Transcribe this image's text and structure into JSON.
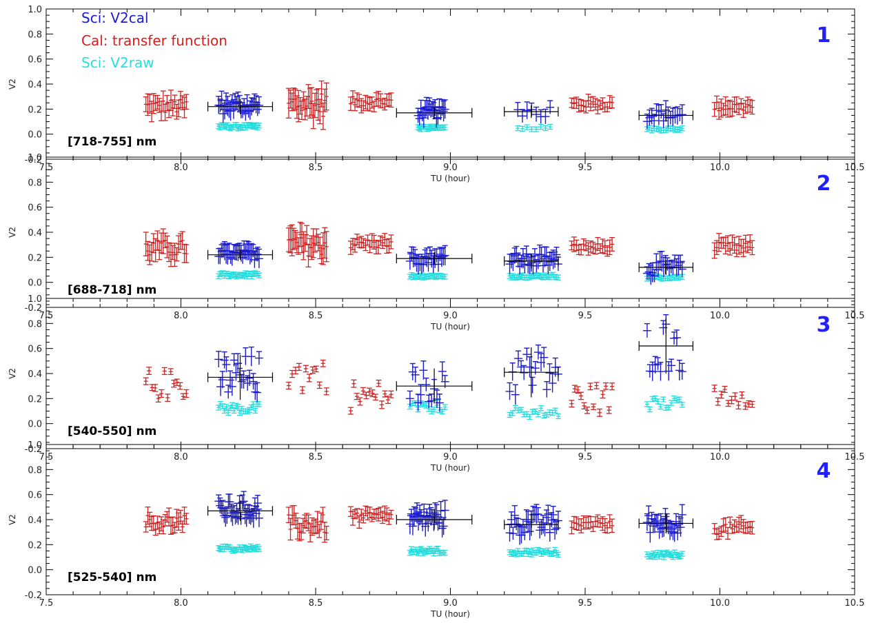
{
  "chart_data": {
    "type": "scatter",
    "xlabel": "TU (hour)",
    "ylabel": "V2",
    "xlim": [
      7.5,
      10.5
    ],
    "ylim": [
      -0.2,
      1.0
    ],
    "xticks": [
      "7.5",
      "8.0",
      "8.5",
      "9.0",
      "9.5",
      "10.0",
      "10.5"
    ],
    "yticks": [
      "-0.2",
      "0.0",
      "0.2",
      "0.4",
      "0.6",
      "0.8",
      "1.0"
    ],
    "legend": [
      {
        "label": "Sci: V2cal",
        "color": "#1a1acc"
      },
      {
        "label": "Cal: transfer function",
        "color": "#dd1a1a"
      },
      {
        "label": "Sci: V2raw",
        "color": "#22e0e0"
      }
    ],
    "colors": {
      "sci_cal": "#1a1acc",
      "cal": "#cc2222",
      "sci_raw": "#22dddd",
      "mean": "#000000",
      "panel_number": "#1f1fff"
    },
    "panels": [
      {
        "number": "1",
        "band": "[718-755] nm",
        "cal_clusters": [
          {
            "x": [
              7.87,
              8.02
            ],
            "y": 0.22,
            "spread": 0.06,
            "err": 0.05,
            "n": 22
          },
          {
            "x": [
              8.4,
              8.54
            ],
            "y": 0.24,
            "spread": 0.1,
            "err": 0.08,
            "n": 24
          },
          {
            "x": [
              8.63,
              8.78
            ],
            "y": 0.26,
            "spread": 0.04,
            "err": 0.03,
            "n": 20
          },
          {
            "x": [
              9.45,
              9.6
            ],
            "y": 0.24,
            "spread": 0.03,
            "err": 0.03,
            "n": 18
          },
          {
            "x": [
              9.98,
              10.12
            ],
            "y": 0.22,
            "spread": 0.04,
            "err": 0.04,
            "n": 18
          }
        ],
        "sci_clusters": [
          {
            "x": [
              8.14,
              8.29
            ],
            "cal": 0.22,
            "cal_spread": 0.06,
            "raw": 0.06,
            "raw_spread": 0.015,
            "n": 28,
            "mean": 0.22,
            "mean_x": [
              8.1,
              8.34
            ]
          },
          {
            "x": [
              8.88,
              8.98
            ],
            "cal": 0.17,
            "cal_spread": 0.05,
            "raw": 0.05,
            "raw_spread": 0.012,
            "n": 20,
            "mean": 0.17,
            "mean_x": [
              8.8,
              9.08
            ]
          },
          {
            "x": [
              9.25,
              9.37
            ],
            "cal": 0.18,
            "cal_spread": 0.05,
            "raw": 0.05,
            "raw_spread": 0.012,
            "n": 8,
            "mean": 0.18,
            "mean_x": [
              9.2,
              9.4
            ]
          },
          {
            "x": [
              9.73,
              9.86
            ],
            "cal": 0.15,
            "cal_spread": 0.05,
            "raw": 0.04,
            "raw_spread": 0.012,
            "n": 16,
            "mean": 0.15,
            "mean_x": [
              9.7,
              9.9
            ]
          }
        ]
      },
      {
        "number": "2",
        "band": "[688-718] nm",
        "cal_clusters": [
          {
            "x": [
              7.87,
              8.02
            ],
            "y": 0.27,
            "spread": 0.07,
            "err": 0.06,
            "n": 22
          },
          {
            "x": [
              8.4,
              8.54
            ],
            "y": 0.3,
            "spread": 0.09,
            "err": 0.08,
            "n": 24
          },
          {
            "x": [
              8.63,
              8.78
            ],
            "y": 0.31,
            "spread": 0.04,
            "err": 0.03,
            "n": 20
          },
          {
            "x": [
              9.45,
              9.6
            ],
            "y": 0.28,
            "spread": 0.03,
            "err": 0.03,
            "n": 18
          },
          {
            "x": [
              9.98,
              10.12
            ],
            "y": 0.28,
            "spread": 0.04,
            "err": 0.04,
            "n": 18
          }
        ],
        "sci_clusters": [
          {
            "x": [
              8.14,
              8.29
            ],
            "cal": 0.22,
            "cal_spread": 0.04,
            "raw": 0.06,
            "raw_spread": 0.015,
            "n": 28,
            "mean": 0.22,
            "mean_x": [
              8.1,
              8.34
            ]
          },
          {
            "x": [
              8.85,
              8.98
            ],
            "cal": 0.19,
            "cal_spread": 0.05,
            "raw": 0.05,
            "raw_spread": 0.012,
            "n": 22,
            "mean": 0.19,
            "mean_x": [
              8.8,
              9.08
            ]
          },
          {
            "x": [
              9.22,
              9.4
            ],
            "cal": 0.17,
            "cal_spread": 0.06,
            "raw": 0.05,
            "raw_spread": 0.012,
            "n": 30,
            "mean": 0.17,
            "mean_x": [
              9.2,
              9.4
            ]
          },
          {
            "x": [
              9.73,
              9.86
            ],
            "cal": 0.11,
            "cal_spread": 0.06,
            "raw": 0.04,
            "raw_spread": 0.012,
            "n": 20,
            "mean": 0.12,
            "mean_x": [
              9.7,
              9.9
            ]
          }
        ]
      },
      {
        "number": "3",
        "band": "[540-550] nm",
        "cal_clusters": [
          {
            "x": [
              7.87,
              8.02
            ],
            "y": 0.31,
            "spread": 0.12,
            "err": 0.01,
            "n": 14
          },
          {
            "x": [
              8.4,
              8.54
            ],
            "y": 0.39,
            "spread": 0.14,
            "err": 0.01,
            "n": 12
          },
          {
            "x": [
              8.63,
              8.78
            ],
            "y": 0.22,
            "spread": 0.12,
            "err": 0.01,
            "n": 14
          },
          {
            "x": [
              9.45,
              9.6
            ],
            "y": 0.2,
            "spread": 0.12,
            "err": 0.01,
            "n": 14
          },
          {
            "x": [
              9.98,
              10.12
            ],
            "y": 0.24,
            "spread": 0.1,
            "err": 0.01,
            "n": 12
          }
        ],
        "sci_clusters": [
          {
            "x": [
              8.14,
              8.29
            ],
            "cal": 0.37,
            "cal_spread": 0.18,
            "raw": 0.12,
            "raw_spread": 0.04,
            "n": 22,
            "mean": 0.37,
            "mean_x": [
              8.1,
              8.34
            ]
          },
          {
            "x": [
              8.85,
              8.98
            ],
            "cal": 0.3,
            "cal_spread": 0.14,
            "raw": 0.13,
            "raw_spread": 0.04,
            "n": 14,
            "mean": 0.3,
            "mean_x": [
              8.8,
              9.08
            ]
          },
          {
            "x": [
              9.22,
              9.4
            ],
            "cal": 0.4,
            "cal_spread": 0.2,
            "raw": 0.09,
            "raw_spread": 0.04,
            "n": 18,
            "mean": 0.41,
            "mean_x": [
              9.2,
              9.4
            ]
          },
          {
            "x": [
              9.73,
              9.86
            ],
            "cal": 0.62,
            "cal_spread": 0.22,
            "raw": 0.16,
            "raw_spread": 0.05,
            "n": 14,
            "mean": 0.62,
            "mean_x": [
              9.7,
              9.9
            ]
          }
        ]
      },
      {
        "number": "4",
        "band": "[525-540] nm",
        "cal_clusters": [
          {
            "x": [
              7.87,
              8.02
            ],
            "y": 0.38,
            "spread": 0.06,
            "err": 0.04,
            "n": 22
          },
          {
            "x": [
              8.4,
              8.54
            ],
            "y": 0.36,
            "spread": 0.08,
            "err": 0.05,
            "n": 22
          },
          {
            "x": [
              8.63,
              8.78
            ],
            "y": 0.42,
            "spread": 0.05,
            "err": 0.03,
            "n": 20
          },
          {
            "x": [
              9.45,
              9.6
            ],
            "y": 0.36,
            "spread": 0.03,
            "err": 0.03,
            "n": 18
          },
          {
            "x": [
              9.98,
              10.12
            ],
            "y": 0.33,
            "spread": 0.05,
            "err": 0.03,
            "n": 18
          }
        ],
        "sci_clusters": [
          {
            "x": [
              8.14,
              8.29
            ],
            "cal": 0.47,
            "cal_spread": 0.08,
            "raw": 0.17,
            "raw_spread": 0.02,
            "n": 30,
            "mean": 0.47,
            "mean_x": [
              8.1,
              8.34
            ]
          },
          {
            "x": [
              8.85,
              8.98
            ],
            "cal": 0.4,
            "cal_spread": 0.08,
            "raw": 0.15,
            "raw_spread": 0.02,
            "n": 26,
            "mean": 0.4,
            "mean_x": [
              8.8,
              9.08
            ]
          },
          {
            "x": [
              9.22,
              9.4
            ],
            "cal": 0.36,
            "cal_spread": 0.09,
            "raw": 0.14,
            "raw_spread": 0.02,
            "n": 30,
            "mean": 0.36,
            "mean_x": [
              9.2,
              9.4
            ]
          },
          {
            "x": [
              9.73,
              9.86
            ],
            "cal": 0.37,
            "cal_spread": 0.08,
            "raw": 0.12,
            "raw_spread": 0.02,
            "n": 24,
            "mean": 0.37,
            "mean_x": [
              9.7,
              9.9
            ]
          }
        ]
      }
    ]
  }
}
